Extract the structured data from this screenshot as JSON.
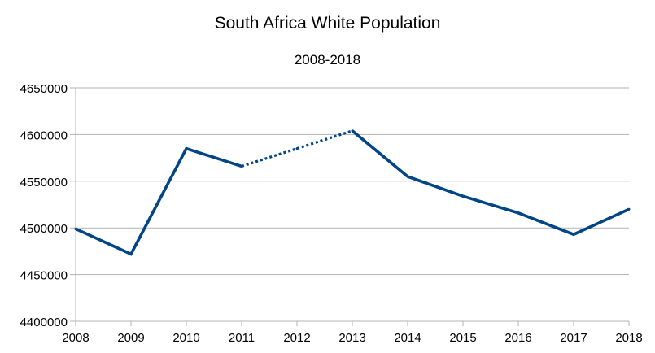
{
  "chart_data": {
    "type": "line",
    "title": "South Africa White Population",
    "subtitle": "2008-2018",
    "xlabel": "",
    "ylabel": "",
    "x": [
      2008,
      2009,
      2010,
      2011,
      2012,
      2013,
      2014,
      2015,
      2016,
      2017,
      2018
    ],
    "x_tick_labels": [
      "2008",
      "2009",
      "2010",
      "2011",
      "2012",
      "2013",
      "2014",
      "2015",
      "2016",
      "2017",
      "2018"
    ],
    "y_tick_labels": [
      "4650000",
      "4600000",
      "4550000",
      "4500000",
      "4450000",
      "4400000"
    ],
    "ylim": [
      4400000,
      4650000
    ],
    "grid": true,
    "series": [
      {
        "values": [
          4499000,
          4472000,
          4585000,
          4566000,
          4585000,
          4604000,
          4555000,
          4534000,
          4516000,
          4493000,
          4520000
        ],
        "dashed_segments": [
          [
            2011,
            2013
          ]
        ],
        "color": "#004586"
      }
    ],
    "gridline_color": "#b3b3b3"
  }
}
